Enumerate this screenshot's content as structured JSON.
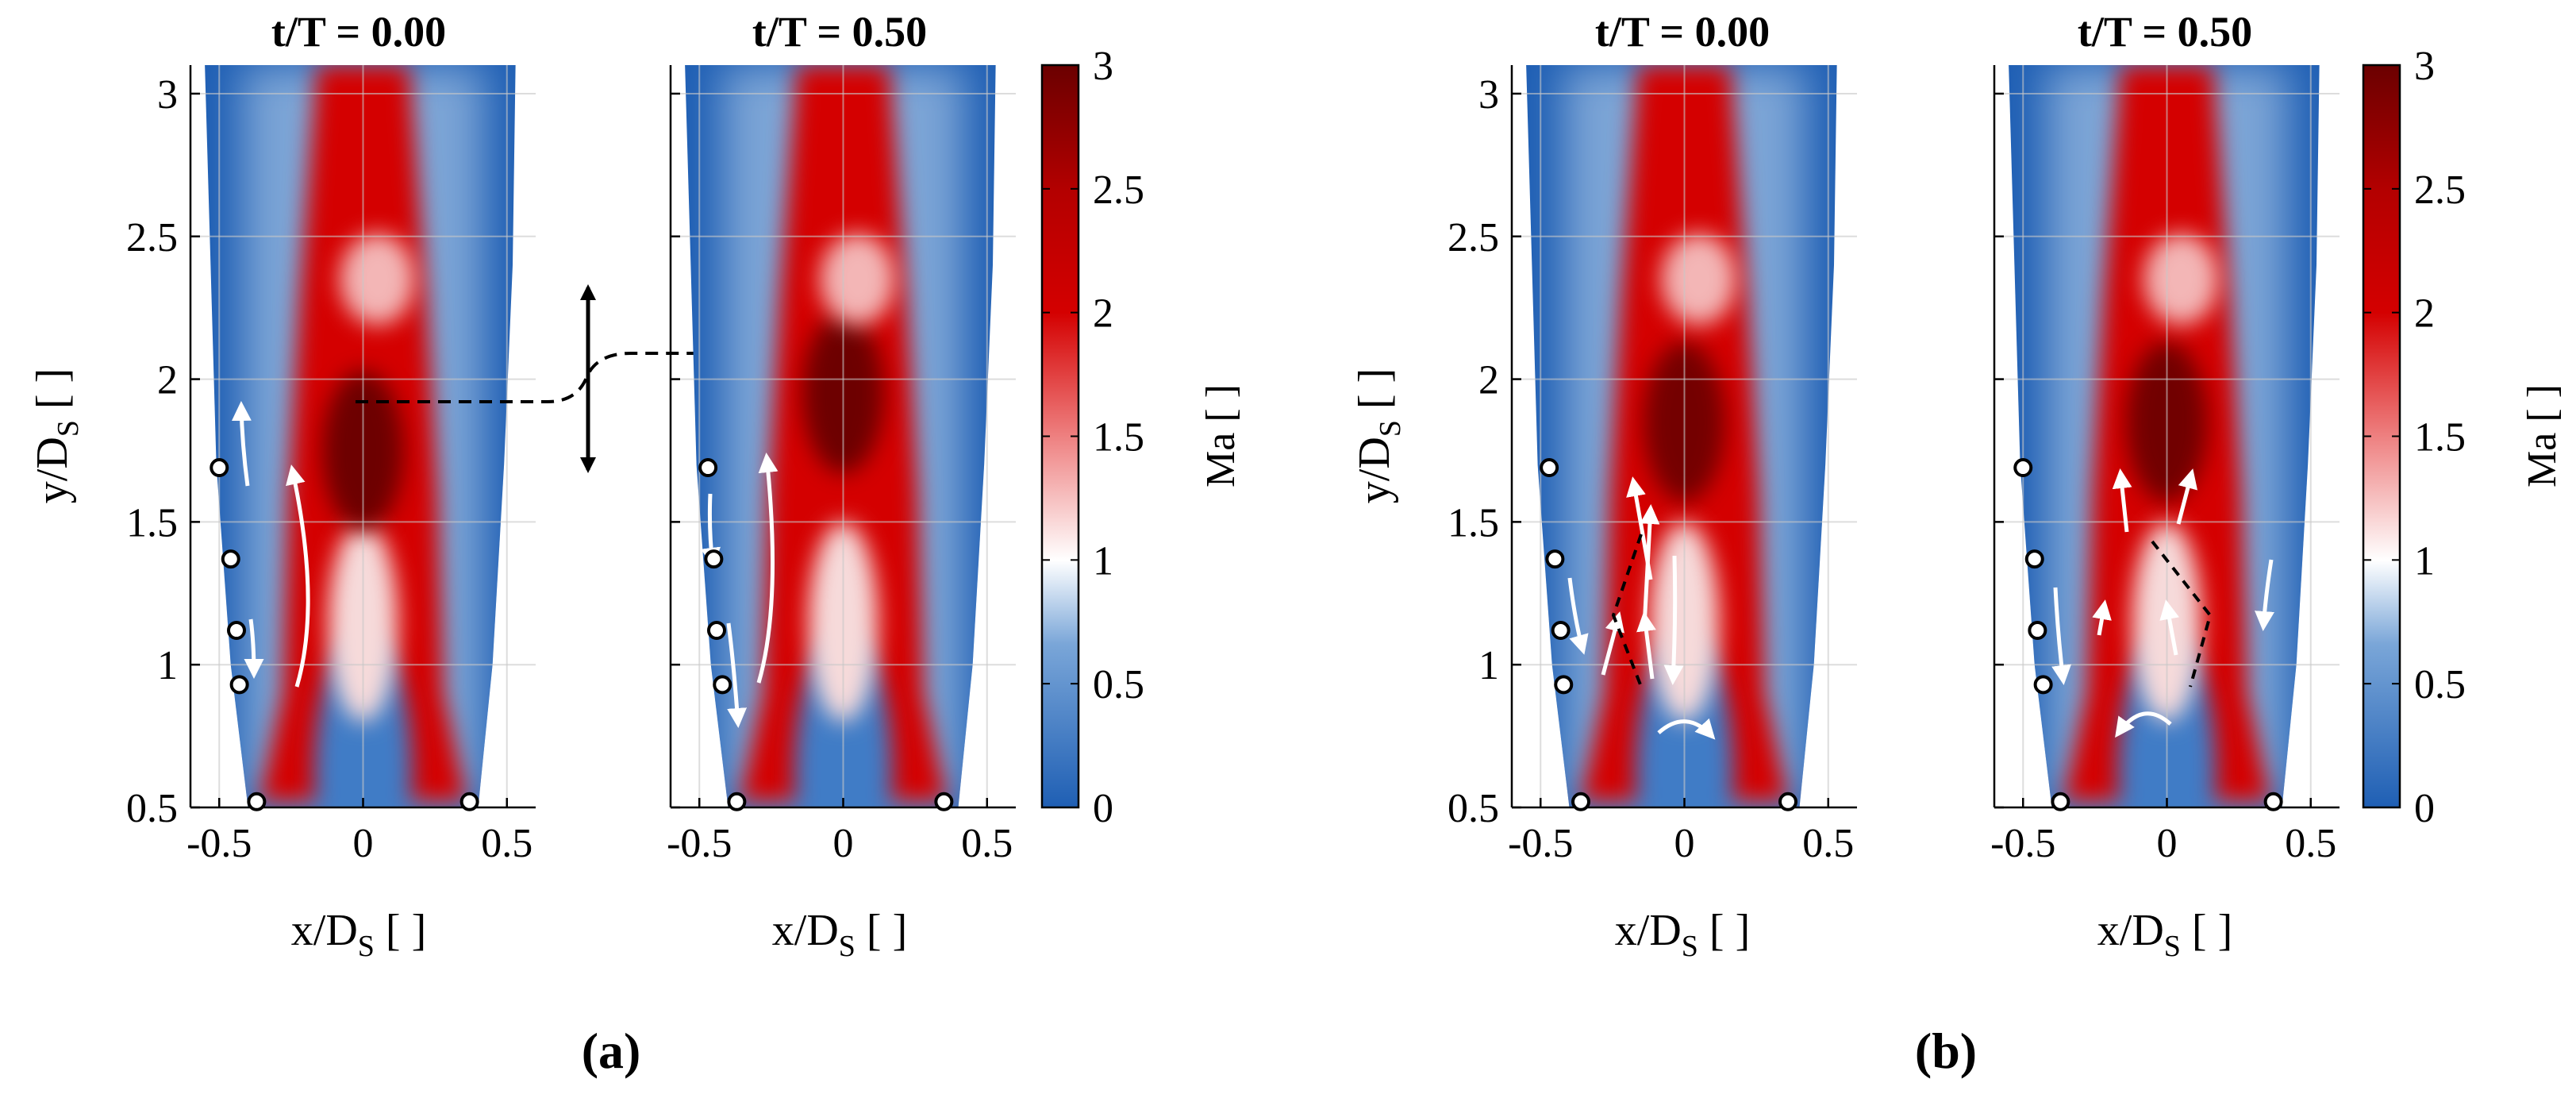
{
  "figure": {
    "groups": [
      {
        "label": "(a)",
        "panels": [
          "t/T = 0.00",
          "t/T = 0.50"
        ]
      },
      {
        "label": "(b)",
        "panels": [
          "t/T = 0.00",
          "t/T = 0.50"
        ]
      }
    ],
    "xlabel_main": "x/D",
    "xlabel_sub": "S",
    "xlabel_unit": "[ ]",
    "ylabel_main": "y/D",
    "ylabel_sub": "S",
    "ylabel_unit": "[ ]",
    "colorbar_label": "Ma [ ]",
    "colors": {
      "low": "#1f5fb4",
      "mid": "#ffffff",
      "high": "#d40000",
      "peak": "#6b0000",
      "axis": "#000000",
      "grid": "#c8c8c8"
    }
  },
  "chart_data": [
    {
      "id": "a-t0",
      "type": "heatmap",
      "title": "t/T = 0.00",
      "group": "(a)",
      "xlabel": "x/DS [ ]",
      "ylabel": "y/DS [ ]",
      "xlim": [
        -0.6,
        0.6
      ],
      "ylim": [
        0.5,
        3.1
      ],
      "xticks": [
        -0.5,
        0,
        0.5
      ],
      "xtick_labels": [
        "-0.5",
        "0",
        "0.5"
      ],
      "yticks": [
        0.5,
        1,
        1.5,
        2,
        2.5,
        3
      ],
      "ytick_labels": [
        "0.5",
        "1",
        "1.5",
        "2",
        "2.5",
        "3"
      ],
      "jet_peak": {
        "x": 0.0,
        "y": 1.75,
        "mach": 2.9
      },
      "markers": [
        [
          -0.5,
          1.69
        ],
        [
          -0.46,
          1.37
        ],
        [
          -0.44,
          1.12
        ],
        [
          -0.43,
          0.93
        ],
        [
          -0.37,
          0.52
        ],
        [
          0.37,
          0.52
        ]
      ]
    },
    {
      "id": "a-t05",
      "type": "heatmap",
      "title": "t/T = 0.50",
      "group": "(a)",
      "xlabel": "x/DS [ ]",
      "ylabel": "",
      "xlim": [
        -0.6,
        0.6
      ],
      "ylim": [
        0.5,
        3.1
      ],
      "xticks": [
        -0.5,
        0,
        0.5
      ],
      "xtick_labels": [
        "-0.5",
        "0",
        "0.5"
      ],
      "yticks": [],
      "ytick_labels": [],
      "jet_peak": {
        "x": 0.0,
        "y": 1.95,
        "mach": 2.9
      },
      "markers": [
        [
          -0.47,
          1.69
        ],
        [
          -0.45,
          1.37
        ],
        [
          -0.44,
          1.12
        ],
        [
          -0.42,
          0.93
        ],
        [
          -0.37,
          0.52
        ],
        [
          0.35,
          0.52
        ]
      ]
    },
    {
      "id": "b-t0",
      "type": "heatmap",
      "title": "t/T = 0.00",
      "group": "(b)",
      "xlabel": "x/DS [ ]",
      "ylabel": "y/DS [ ]",
      "xlim": [
        -0.6,
        0.6
      ],
      "ylim": [
        0.5,
        3.1
      ],
      "xticks": [
        -0.5,
        0,
        0.5
      ],
      "xtick_labels": [
        "-0.5",
        "0",
        "0.5"
      ],
      "yticks": [
        0.5,
        1,
        1.5,
        2,
        2.5,
        3
      ],
      "ytick_labels": [
        "0.5",
        "1",
        "1.5",
        "2",
        "2.5",
        "3"
      ],
      "jet_peak": {
        "x": 0.0,
        "y": 1.85,
        "mach": 2.7
      },
      "markers": [
        [
          -0.47,
          1.69
        ],
        [
          -0.45,
          1.37
        ],
        [
          -0.43,
          1.12
        ],
        [
          -0.42,
          0.93
        ],
        [
          -0.36,
          0.52
        ],
        [
          0.36,
          0.52
        ]
      ]
    },
    {
      "id": "b-t05",
      "type": "heatmap",
      "title": "t/T = 0.50",
      "group": "(b)",
      "xlabel": "x/DS [ ]",
      "ylabel": "",
      "xlim": [
        -0.6,
        0.6
      ],
      "ylim": [
        0.5,
        3.1
      ],
      "xticks": [
        -0.5,
        0,
        0.5
      ],
      "xtick_labels": [
        "-0.5",
        "0",
        "0.5"
      ],
      "yticks": [],
      "ytick_labels": [],
      "jet_peak": {
        "x": 0.0,
        "y": 1.85,
        "mach": 2.8
      },
      "markers": [
        [
          -0.5,
          1.69
        ],
        [
          -0.46,
          1.37
        ],
        [
          -0.45,
          1.12
        ],
        [
          -0.43,
          0.93
        ],
        [
          -0.37,
          0.52
        ],
        [
          0.37,
          0.52
        ]
      ]
    }
  ],
  "colorbars": [
    {
      "id": "cb-a",
      "label": "Ma [ ]",
      "range": [
        0,
        3
      ],
      "ticks": [
        0,
        0.5,
        1,
        1.5,
        2,
        2.5,
        3
      ],
      "tick_labels": [
        "0",
        "0.5",
        "1",
        "1.5",
        "2",
        "2.5",
        "3"
      ]
    },
    {
      "id": "cb-b",
      "label": "Ma [ ]",
      "range": [
        0,
        3
      ],
      "ticks": [
        0,
        0.5,
        1,
        1.5,
        2,
        2.5,
        3
      ],
      "tick_labels": [
        "0",
        "0.5",
        "1",
        "1.5",
        "2",
        "2.5",
        "3"
      ]
    }
  ]
}
